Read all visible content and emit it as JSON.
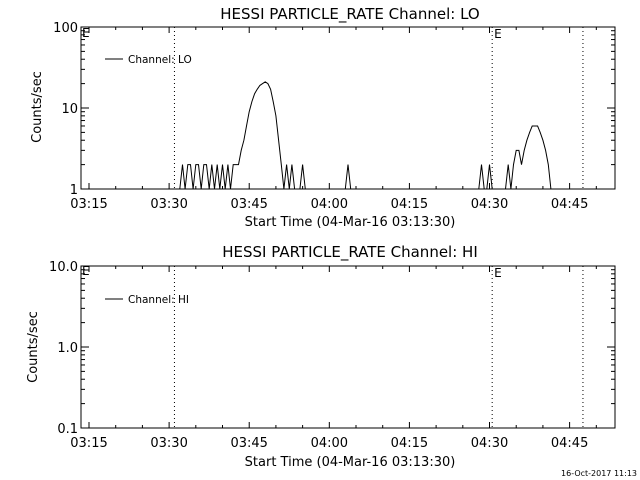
{
  "chart_data": [
    {
      "type": "line",
      "title": "HESSI PARTICLE_RATE Channel: LO",
      "xlabel": "Start Time (04-Mar-16 03:13:30)",
      "ylabel": "Counts/sec",
      "yscale": "log",
      "ylim": [
        1,
        100
      ],
      "xlim": [
        "03:13:30",
        "04:53:30"
      ],
      "x_ticks": [
        "03:15",
        "03:30",
        "03:45",
        "04:00",
        "04:15",
        "04:30",
        "04:45"
      ],
      "y_ticks": [
        "1",
        "10",
        "100"
      ],
      "legend": "top-left",
      "grid": false,
      "dotted_markers": [
        {
          "time": "03:31:00",
          "label": ""
        },
        {
          "time": "04:30:30",
          "label": "E"
        },
        {
          "time": "04:47:30",
          "label": ""
        }
      ],
      "corner_mark": "E",
      "series": [
        {
          "name": "Channel: LO",
          "x": [
            "03:31:30",
            "03:32:00",
            "03:32:30",
            "03:33:00",
            "03:33:30",
            "03:34:00",
            "03:34:30",
            "03:35:00",
            "03:35:30",
            "03:36:00",
            "03:36:30",
            "03:37:00",
            "03:37:30",
            "03:38:00",
            "03:38:30",
            "03:39:00",
            "03:39:30",
            "03:40:00",
            "03:40:30",
            "03:41:00",
            "03:41:30",
            "03:42:00",
            "03:42:30",
            "03:43:00",
            "03:43:30",
            "03:44:00",
            "03:44:30",
            "03:45:00",
            "03:45:30",
            "03:46:00",
            "03:46:30",
            "03:47:00",
            "03:47:30",
            "03:48:00",
            "03:48:30",
            "03:49:00",
            "03:49:30",
            "03:50:00",
            "03:50:30",
            "03:51:00",
            "03:51:30",
            "03:52:00",
            "03:52:30",
            "03:53:00",
            "03:53:30",
            "03:54:00",
            "03:54:30",
            "03:55:00",
            "03:55:30",
            "03:56:00",
            "03:56:30",
            "03:57:00",
            "03:57:30",
            "03:58:00",
            "03:58:30",
            "03:59:00",
            "03:59:30",
            "04:00:00",
            "04:00:30",
            "04:01:00",
            "04:01:30",
            "04:02:00",
            "04:02:30",
            "04:03:00",
            "04:03:30",
            "04:04:00",
            "04:28:00",
            "04:28:30",
            "04:29:00",
            "04:29:30",
            "04:30:00",
            "04:30:30",
            "04:31:00",
            "04:31:30",
            "04:32:00",
            "04:32:30",
            "04:33:00",
            "04:33:30",
            "04:34:00",
            "04:34:30",
            "04:35:00",
            "04:35:30",
            "04:36:00",
            "04:36:30",
            "04:37:00",
            "04:37:30",
            "04:38:00",
            "04:38:30",
            "04:39:00",
            "04:39:30",
            "04:40:00",
            "04:40:30",
            "04:41:00",
            "04:41:30"
          ],
          "y": [
            1,
            1,
            2,
            1,
            2,
            2,
            1,
            2,
            2,
            1,
            2,
            2,
            1,
            2,
            1,
            2,
            1,
            2,
            1,
            2,
            1,
            2,
            2,
            2,
            3,
            4,
            6,
            9,
            12,
            15,
            17,
            19,
            20,
            21,
            20,
            17,
            12,
            8,
            4,
            2,
            1,
            2,
            1,
            2,
            1,
            1,
            1,
            2,
            1,
            1,
            1,
            1,
            1,
            1,
            1,
            1,
            1,
            1,
            1,
            1,
            1,
            1,
            1,
            1,
            2,
            1,
            1,
            2,
            1,
            1,
            2,
            1,
            1,
            1,
            1,
            1,
            1,
            2,
            1,
            2,
            3,
            3,
            2,
            3,
            4,
            5,
            6,
            6,
            6,
            5,
            4,
            3,
            2,
            1
          ]
        }
      ]
    },
    {
      "type": "line",
      "title": "HESSI PARTICLE_RATE Channel: HI",
      "xlabel": "Start Time (04-Mar-16 03:13:30)",
      "ylabel": "Counts/sec",
      "yscale": "log",
      "ylim": [
        0.1,
        10
      ],
      "xlim": [
        "03:13:30",
        "04:53:30"
      ],
      "x_ticks": [
        "03:15",
        "03:30",
        "03:45",
        "04:00",
        "04:15",
        "04:30",
        "04:45"
      ],
      "y_ticks": [
        "0.1",
        "1.0",
        "10.0"
      ],
      "legend": "top-left",
      "grid": false,
      "dotted_markers": [
        {
          "time": "03:31:00",
          "label": ""
        },
        {
          "time": "04:30:30",
          "label": "E"
        },
        {
          "time": "04:47:30",
          "label": ""
        }
      ],
      "corner_mark": "E",
      "series": [
        {
          "name": "Channel: HI",
          "x": [],
          "y": []
        }
      ]
    }
  ],
  "footer": {
    "timestamp": "16-Oct-2017 11:13"
  }
}
